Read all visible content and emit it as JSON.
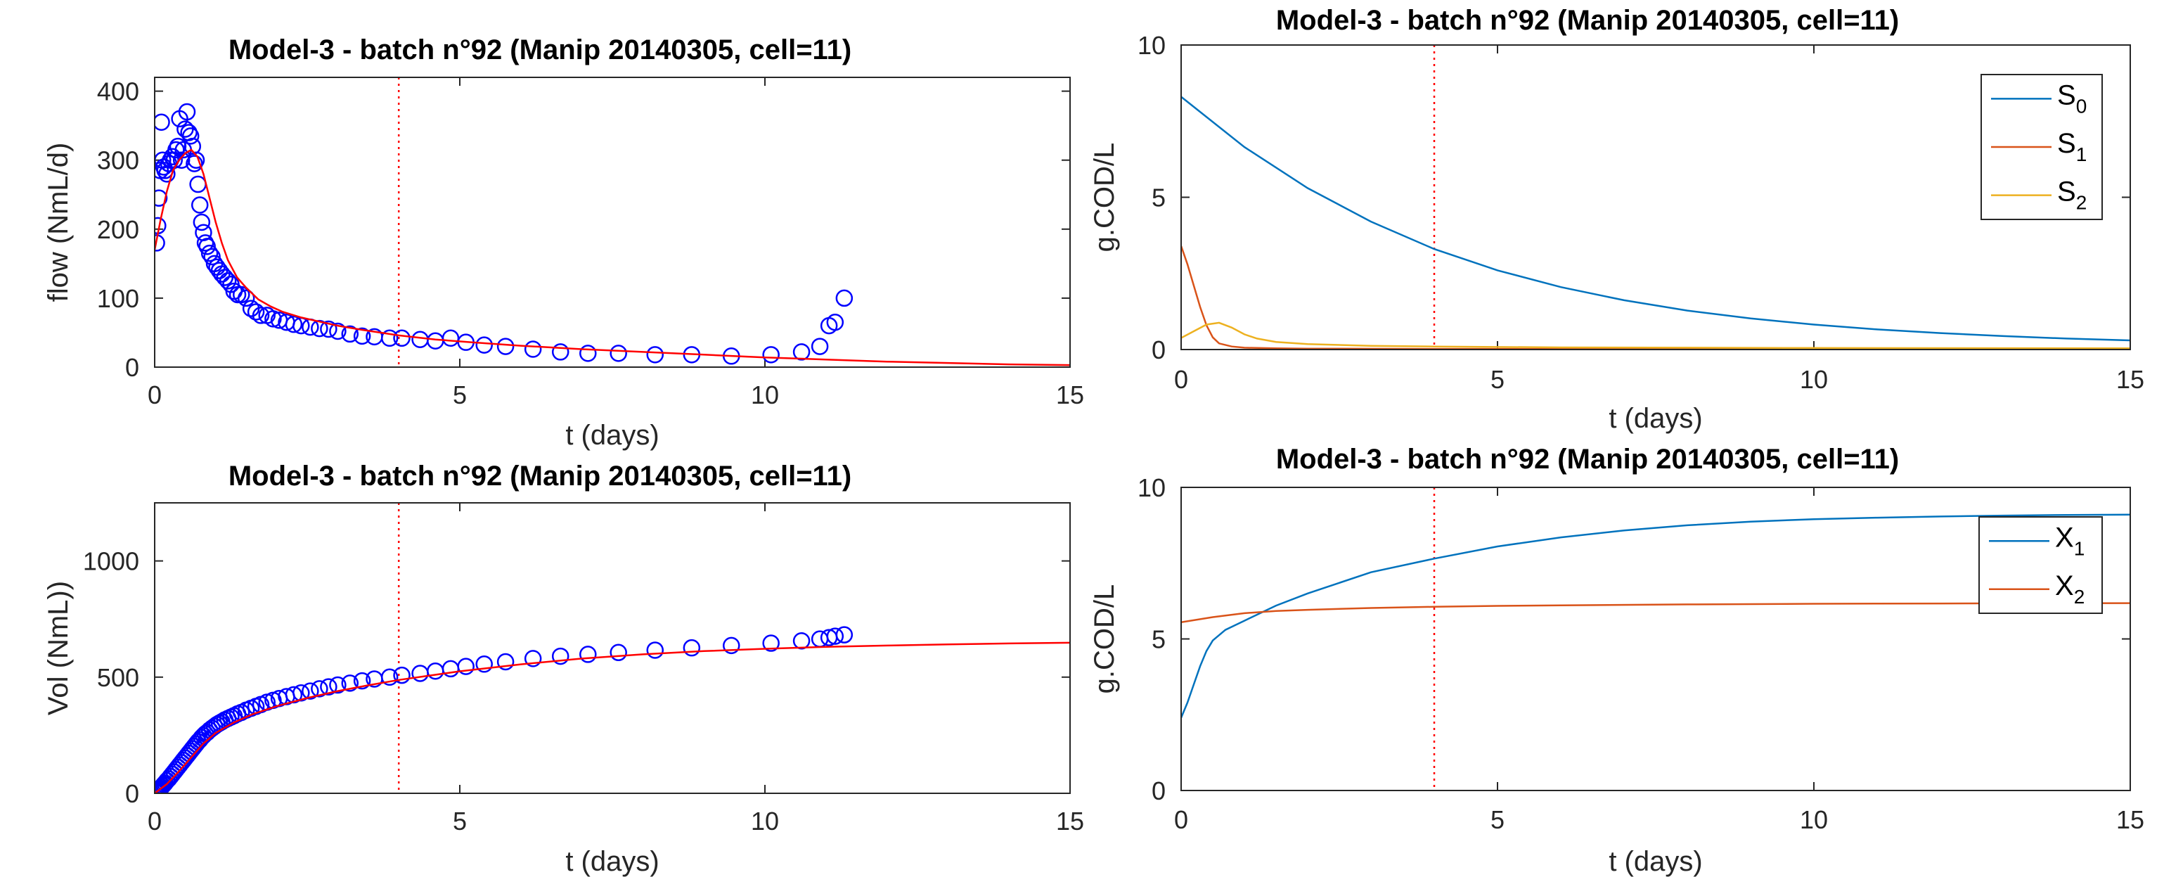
{
  "chart_data": [
    {
      "id": "flow",
      "type": "scatter",
      "title": "Model-3 - batch n°92 (Manip 20140305, cell=11)",
      "xlabel": "t (days)",
      "ylabel": "flow (NmL/d)",
      "xlim": [
        0,
        15
      ],
      "ylim": [
        0,
        420
      ],
      "xticks": [
        0,
        5,
        10,
        15
      ],
      "yticks": [
        0,
        100,
        200,
        300,
        400
      ],
      "vline_x": 4,
      "colors": {
        "points": "#0000ff",
        "model": "#ff0000",
        "vline": "#ff0000"
      },
      "series": [
        {
          "kind": "points",
          "x": [
            0.03,
            0.05,
            0.07,
            0.09,
            0.11,
            0.13,
            0.15,
            0.17,
            0.2,
            0.23,
            0.26,
            0.29,
            0.32,
            0.35,
            0.38,
            0.41,
            0.44,
            0.47,
            0.5,
            0.53,
            0.56,
            0.59,
            0.62,
            0.65,
            0.68,
            0.71,
            0.74,
            0.77,
            0.8,
            0.83,
            0.86,
            0.9,
            0.94,
            0.98,
            1.02,
            1.06,
            1.1,
            1.15,
            1.2,
            1.25,
            1.3,
            1.36,
            1.42,
            1.5,
            1.58,
            1.66,
            1.74,
            1.84,
            1.94,
            2.04,
            2.16,
            2.28,
            2.4,
            2.55,
            2.7,
            2.85,
            3.0,
            3.2,
            3.4,
            3.6,
            3.85,
            4.05,
            4.35,
            4.6,
            4.85,
            5.1,
            5.4,
            5.75,
            6.2,
            6.65,
            7.1,
            7.6,
            8.2,
            8.8,
            9.45,
            10.1,
            10.6,
            10.9,
            11.05,
            11.15,
            11.3
          ],
          "y": [
            180,
            205,
            245,
            285,
            355,
            300,
            290,
            285,
            280,
            295,
            300,
            305,
            300,
            315,
            320,
            360,
            300,
            315,
            345,
            370,
            340,
            335,
            320,
            295,
            300,
            265,
            235,
            210,
            195,
            180,
            175,
            165,
            160,
            150,
            145,
            140,
            135,
            130,
            125,
            120,
            110,
            105,
            105,
            100,
            85,
            80,
            75,
            75,
            70,
            68,
            65,
            62,
            60,
            58,
            56,
            55,
            52,
            48,
            45,
            44,
            42,
            42,
            40,
            38,
            42,
            36,
            32,
            30,
            26,
            22,
            20,
            20,
            18,
            18,
            16,
            18,
            22,
            30,
            60,
            65,
            100
          ]
        },
        {
          "kind": "model",
          "x": [
            0,
            0.1,
            0.2,
            0.3,
            0.4,
            0.5,
            0.6,
            0.7,
            0.8,
            0.9,
            1.0,
            1.1,
            1.2,
            1.35,
            1.5,
            1.7,
            1.9,
            2.1,
            2.4,
            2.7,
            3.0,
            3.4,
            4.0,
            4.6,
            5.2,
            6.0,
            7.0,
            8.0,
            9.0,
            10.0,
            11.0,
            12.0,
            13.0,
            14.0,
            15.0
          ],
          "y": [
            170,
            215,
            255,
            285,
            300,
            310,
            315,
            305,
            280,
            245,
            210,
            180,
            155,
            130,
            115,
            98,
            88,
            80,
            72,
            66,
            60,
            54,
            46,
            40,
            36,
            31,
            26,
            22,
            18,
            14,
            11,
            8,
            6,
            4,
            3
          ]
        }
      ]
    },
    {
      "id": "substrates",
      "type": "line",
      "title": "Model-3 - batch n°92 (Manip 20140305, cell=11)",
      "xlabel": "t (days)",
      "ylabel": "g.COD/L",
      "xlim": [
        0,
        15
      ],
      "ylim": [
        0,
        10
      ],
      "xticks": [
        0,
        5,
        10,
        15
      ],
      "yticks": [
        0,
        5,
        10
      ],
      "vline_x": 4,
      "legend": "top-right",
      "colors": {
        "vline": "#ff0000"
      },
      "series": [
        {
          "name": "S",
          "sub": "0",
          "color": "#0072bd",
          "x": [
            0,
            1,
            2,
            3,
            4,
            5,
            6,
            7,
            8,
            9,
            10,
            11,
            12,
            13,
            14,
            15
          ],
          "y": [
            8.3,
            6.65,
            5.3,
            4.2,
            3.3,
            2.6,
            2.05,
            1.62,
            1.28,
            1.02,
            0.82,
            0.66,
            0.54,
            0.44,
            0.36,
            0.3
          ]
        },
        {
          "name": "S",
          "sub": "1",
          "color": "#d95319",
          "x": [
            0,
            0.1,
            0.2,
            0.3,
            0.4,
            0.5,
            0.6,
            0.8,
            1.0,
            1.5,
            2,
            4,
            15
          ],
          "y": [
            3.4,
            2.8,
            2.1,
            1.4,
            0.8,
            0.4,
            0.2,
            0.1,
            0.06,
            0.04,
            0.03,
            0.02,
            0.01
          ]
        },
        {
          "name": "S",
          "sub": "2",
          "color": "#edb120",
          "x": [
            0,
            0.2,
            0.4,
            0.6,
            0.8,
            1.0,
            1.2,
            1.5,
            2.0,
            3.0,
            4.0,
            6.0,
            10.0,
            15.0
          ],
          "y": [
            0.38,
            0.6,
            0.82,
            0.88,
            0.72,
            0.5,
            0.36,
            0.25,
            0.18,
            0.12,
            0.1,
            0.07,
            0.05,
            0.04
          ]
        }
      ]
    },
    {
      "id": "volume",
      "type": "scatter",
      "title": "Model-3 - batch n°92 (Manip 20140305, cell=11)",
      "xlabel": "t (days)",
      "ylabel": "Vol (NmL))",
      "xlim": [
        0,
        15
      ],
      "ylim": [
        0,
        1250
      ],
      "xticks": [
        0,
        5,
        10,
        15
      ],
      "yticks": [
        0,
        500,
        1000
      ],
      "vline_x": 4,
      "colors": {
        "points": "#0000ff",
        "model": "#ff0000",
        "vline": "#ff0000"
      },
      "series": [
        {
          "kind": "points",
          "x": [
            0.01,
            0.03,
            0.05,
            0.07,
            0.09,
            0.11,
            0.13,
            0.15,
            0.17,
            0.2,
            0.23,
            0.26,
            0.29,
            0.32,
            0.35,
            0.38,
            0.41,
            0.44,
            0.47,
            0.5,
            0.53,
            0.56,
            0.59,
            0.62,
            0.65,
            0.68,
            0.71,
            0.74,
            0.77,
            0.8,
            0.83,
            0.86,
            0.9,
            0.94,
            0.98,
            1.02,
            1.06,
            1.1,
            1.15,
            1.2,
            1.25,
            1.3,
            1.36,
            1.42,
            1.5,
            1.58,
            1.66,
            1.74,
            1.84,
            1.94,
            2.04,
            2.16,
            2.28,
            2.4,
            2.55,
            2.7,
            2.85,
            3.0,
            3.2,
            3.4,
            3.6,
            3.85,
            4.05,
            4.35,
            4.6,
            4.85,
            5.1,
            5.4,
            5.75,
            6.2,
            6.65,
            7.1,
            7.6,
            8.2,
            8.8,
            9.45,
            10.1,
            10.6,
            10.9,
            11.05,
            11.15,
            11.3
          ],
          "y": [
            5,
            8,
            12,
            16,
            20,
            26,
            32,
            38,
            44,
            54,
            62,
            72,
            82,
            92,
            102,
            112,
            122,
            132,
            142,
            152,
            162,
            172,
            182,
            192,
            202,
            212,
            222,
            230,
            240,
            248,
            256,
            262,
            272,
            280,
            288,
            296,
            302,
            308,
            316,
            322,
            328,
            334,
            342,
            348,
            358,
            366,
            374,
            382,
            392,
            400,
            408,
            416,
            424,
            432,
            440,
            450,
            458,
            466,
            474,
            484,
            492,
            500,
            508,
            516,
            526,
            536,
            546,
            556,
            566,
            580,
            590,
            598,
            606,
            616,
            626,
            636,
            646,
            656,
            664,
            670,
            676,
            682
          ]
        },
        {
          "kind": "model",
          "x": [
            0,
            0.2,
            0.4,
            0.6,
            0.8,
            1.0,
            1.3,
            1.6,
            2.0,
            2.5,
            3.0,
            3.5,
            4.0,
            5.0,
            6.0,
            7.0,
            8.0,
            9.0,
            10.0,
            11.0,
            12.0,
            13.0,
            14.0,
            15.0
          ],
          "y": [
            0,
            40,
            95,
            155,
            215,
            260,
            305,
            340,
            375,
            410,
            440,
            465,
            488,
            525,
            555,
            580,
            598,
            612,
            622,
            630,
            636,
            641,
            645,
            648
          ]
        }
      ]
    },
    {
      "id": "biomass",
      "type": "line",
      "title": "Model-3 - batch n°92 (Manip 20140305, cell=11)",
      "xlabel": "t (days)",
      "ylabel": "g.COD/L",
      "xlim": [
        0,
        15
      ],
      "ylim": [
        0,
        10
      ],
      "xticks": [
        0,
        5,
        10,
        15
      ],
      "yticks": [
        0,
        5,
        10
      ],
      "vline_x": 4,
      "legend": "top-right",
      "colors": {
        "vline": "#ff0000"
      },
      "series": [
        {
          "name": "X",
          "sub": "1",
          "color": "#0072bd",
          "x": [
            0,
            0.1,
            0.2,
            0.3,
            0.4,
            0.5,
            0.7,
            1.0,
            1.5,
            2,
            3,
            4,
            5,
            6,
            7,
            8,
            9,
            10,
            11,
            12,
            13,
            14,
            15
          ],
          "y": [
            2.4,
            2.9,
            3.5,
            4.1,
            4.6,
            4.95,
            5.3,
            5.6,
            6.1,
            6.5,
            7.2,
            7.65,
            8.05,
            8.35,
            8.58,
            8.75,
            8.87,
            8.95,
            9.0,
            9.04,
            9.07,
            9.09,
            9.1
          ]
        },
        {
          "name": "X",
          "sub": "2",
          "color": "#d95319",
          "x": [
            0,
            0.5,
            1,
            1.5,
            2,
            3,
            4,
            5,
            6,
            8,
            10,
            12,
            15
          ],
          "y": [
            5.55,
            5.72,
            5.85,
            5.92,
            5.96,
            6.02,
            6.06,
            6.09,
            6.11,
            6.14,
            6.16,
            6.17,
            6.18
          ]
        }
      ]
    }
  ]
}
